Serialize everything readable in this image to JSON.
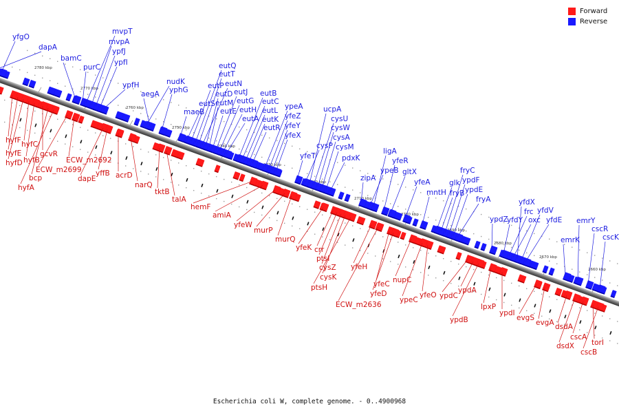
{
  "legend": {
    "forward": {
      "label": "Forward",
      "color": "#ff1a1a"
    },
    "reverse": {
      "label": "Reverse",
      "color": "#1a1aff"
    }
  },
  "caption": "Escherichia coli W, complete genome. - 0..4900968",
  "tick_labels": [
    "2780 kbp",
    "2770 kbp",
    "2760 kbp",
    "2750 kbp",
    "2740 kbp",
    "2730 kbp",
    "2720 kbp",
    "2710 kbp",
    "2700 kbp",
    "2690 kbp",
    "2680 kbp",
    "2670 kbp",
    "2660 kbp"
  ],
  "reverse_genes": [
    "yfgO",
    "dapA",
    "bamC",
    "purC",
    "mvpT",
    "mvpA",
    "ypfJ",
    "ypfI",
    "ypfH",
    "nudK",
    "aegA",
    "yphG",
    "maeB",
    "eutS",
    "eutP",
    "eutQ",
    "eutT",
    "eutN",
    "eutD",
    "eutM",
    "eutE",
    "eutJ",
    "eutG",
    "eutH",
    "eutA",
    "eutB",
    "eutC",
    "eutL",
    "eutK",
    "eutR",
    "ypeA",
    "yfeZ",
    "yfeY",
    "yfeX",
    "yfeT",
    "cysP",
    "ucpA",
    "cysU",
    "cysW",
    "cysA",
    "cysM",
    "pdxK",
    "zipA",
    "ypeB",
    "ligA",
    "yfeR",
    "gltX",
    "yfeA",
    "mntH",
    "glk",
    "fryB",
    "fryC",
    "ypdF",
    "ypdE",
    "fryA",
    "ypdZ",
    "yfdY",
    "frc",
    "oxc",
    "yfdX",
    "yfdV",
    "yfdE",
    "emrK",
    "emrY",
    "cscR",
    "cscK"
  ],
  "forward_genes": [
    "hyfF",
    "hyfE",
    "hyfD",
    "hyfC",
    "hyfB",
    "gcvR",
    "bcp",
    "hyfA",
    "ECW_m2699",
    "ECW_m2692",
    "dapE",
    "yffB",
    "acrD",
    "narQ",
    "tktB",
    "talA",
    "hemF",
    "amiA",
    "yfeW",
    "murP",
    "murQ",
    "yfeK",
    "crr",
    "ptsI",
    "cysZ",
    "cysK",
    "ptsH",
    "yfeH",
    "yfeC",
    "yfeD",
    "ECW_m2636",
    "nupC",
    "ypeC",
    "yfeO",
    "ypdC",
    "ypdA",
    "ypdB",
    "lpxP",
    "ypdI",
    "evgS",
    "evgA",
    "dsdA",
    "dsdX",
    "cscA",
    "torI",
    "cscB"
  ]
}
